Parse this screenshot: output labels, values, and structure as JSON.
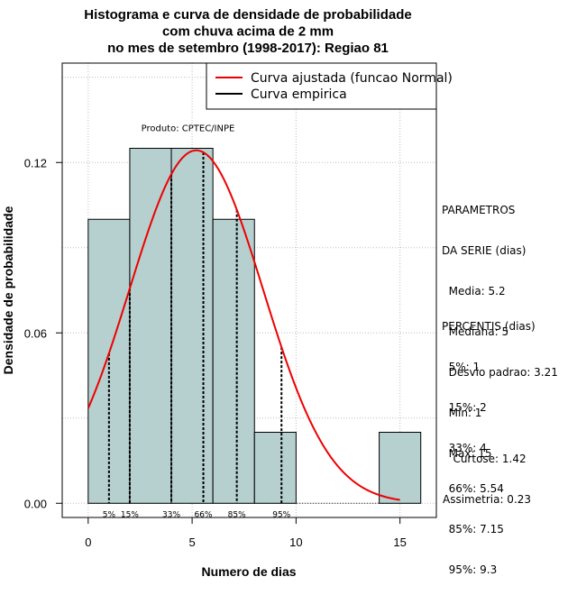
{
  "chart_data": {
    "type": "histogram",
    "title_lines": [
      "Histograma e curva de densidade de probabilidade",
      "com chuva acima de 2 mm",
      "no mes de setembro (1998-2017): Regiao 81"
    ],
    "xlabel": "Numero de dias",
    "ylabel": "Densidade de probabilidade",
    "xlim": [
      -1.25,
      16.75
    ],
    "ylim": [
      -0.005,
      0.155
    ],
    "x_ticks": [
      0,
      5,
      10,
      15
    ],
    "y_ticks": [
      0.0,
      0.06,
      0.12
    ],
    "y_tick_labels": [
      "0.00",
      "0.06",
      "0.12"
    ],
    "grid": true,
    "bars": [
      {
        "x0": 0,
        "x1": 2,
        "density": 0.1
      },
      {
        "x0": 2,
        "x1": 4,
        "density": 0.125
      },
      {
        "x0": 4,
        "x1": 6,
        "density": 0.125
      },
      {
        "x0": 6,
        "x1": 8,
        "density": 0.1
      },
      {
        "x0": 8,
        "x1": 10,
        "density": 0.025
      },
      {
        "x0": 10,
        "x1": 12,
        "density": 0
      },
      {
        "x0": 12,
        "x1": 14,
        "density": 0
      },
      {
        "x0": 14,
        "x1": 16,
        "density": 0.025
      }
    ],
    "fitted_curve": {
      "name": "Curva ajustada (funcao Normal)",
      "mean": 5.2,
      "sd": 3.21,
      "x_range": [
        0,
        15
      ],
      "color": "#ee0000"
    },
    "empirical_curve": {
      "name": "Curva empirica",
      "color": "#000000"
    },
    "percentile_lines": [
      {
        "label": "5%",
        "x": 1
      },
      {
        "label": "15%",
        "x": 2
      },
      {
        "label": "33%",
        "x": 4
      },
      {
        "label": "66%",
        "x": 5.54
      },
      {
        "label": "85%",
        "x": 7.15
      },
      {
        "label": "95%",
        "x": 9.3
      }
    ],
    "annotation": "Produto: CPTEC/INPE",
    "annotation_at": {
      "x": 4.8,
      "y": 0.131
    },
    "legend_position": "top-right",
    "colors": {
      "bar_fill": "#b6cfcf",
      "fitted": "#ee0000",
      "grid": "#bbbbbb"
    }
  },
  "sidebar": {
    "params_lines": [
      "PARAMETROS",
      "DA SERIE (dias)",
      "  Media: 5.2",
      "  Mediana: 5",
      "  Desvio padrao: 3.21",
      "  Min: 1",
      "  Max: 15"
    ],
    "percentis_lines": [
      "PERCENTIS (dias)",
      "  5%: 1",
      "  15%: 2",
      "  33%: 4",
      "  66%: 5.54",
      "  85%: 7.15",
      "  95%: 9.3"
    ],
    "moments_lines": [
      "   Curtose: 1.42",
      "Assimetria: 0.23"
    ]
  }
}
